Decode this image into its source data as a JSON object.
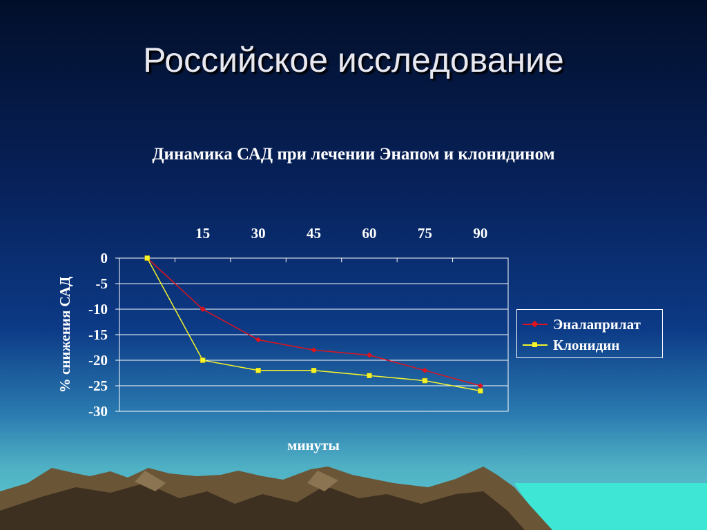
{
  "slide": {
    "title": "Российское исследование"
  },
  "chart_data": {
    "type": "line",
    "title": "Динамика САД при лечении Энапом и клонидином",
    "xlabel": "минуты",
    "ylabel": "% снижения САД",
    "x": [
      0,
      15,
      30,
      45,
      60,
      75,
      90
    ],
    "x_tick_labels": [
      "15",
      "30",
      "45",
      "60",
      "75",
      "90"
    ],
    "x_axis_position": "top",
    "ylim": [
      -30,
      0
    ],
    "y_ticks": [
      0,
      -5,
      -10,
      -15,
      -20,
      -25,
      -30
    ],
    "grid": "horizontal",
    "legend_position": "right",
    "series": [
      {
        "name": "Эналаприлат",
        "color": "#e0141e",
        "marker": "diamond",
        "values": [
          0,
          -10,
          -16,
          -18,
          -19,
          -22,
          -25
        ]
      },
      {
        "name": "Клонидин",
        "color": "#f5f52a",
        "marker": "square",
        "values": [
          0,
          -20,
          -22,
          -22,
          -23,
          -24,
          -26
        ]
      }
    ]
  }
}
